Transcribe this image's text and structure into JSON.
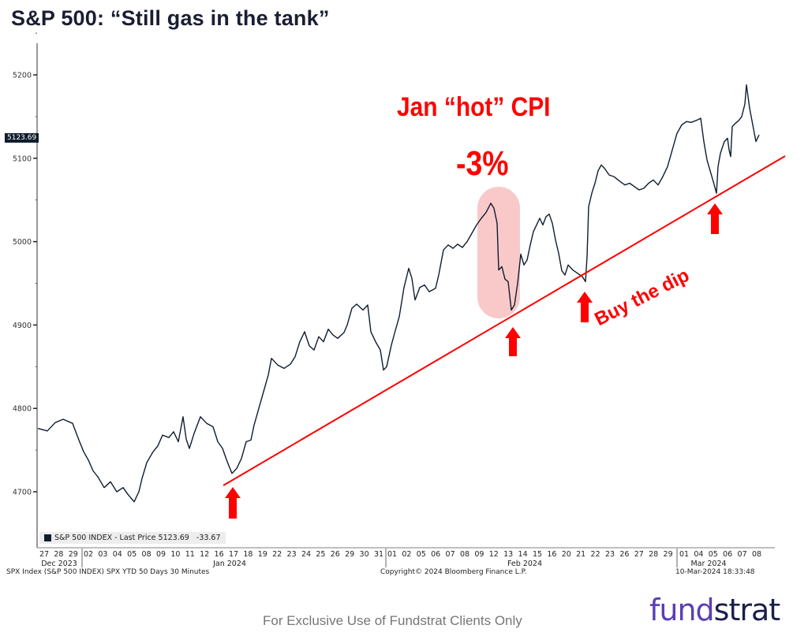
{
  "title": "S&P 500: “Still gas in the tank”",
  "chart_data": {
    "type": "line",
    "title": "S&P 500: “Still gas in the tank”",
    "series": [
      {
        "name": "S&P 500 INDEX - Last Price",
        "color": "#0f1d2e",
        "points": [
          [
            48,
            4776
          ],
          [
            60,
            4773
          ],
          [
            70,
            4783
          ],
          [
            80,
            4787
          ],
          [
            92,
            4782
          ],
          [
            100,
            4762
          ],
          [
            106,
            4748
          ],
          [
            112,
            4738
          ],
          [
            118,
            4725
          ],
          [
            124,
            4718
          ],
          [
            132,
            4705
          ],
          [
            140,
            4712
          ],
          [
            148,
            4700
          ],
          [
            156,
            4705
          ],
          [
            162,
            4697
          ],
          [
            170,
            4688
          ],
          [
            176,
            4700
          ],
          [
            180,
            4716
          ],
          [
            186,
            4735
          ],
          [
            194,
            4748
          ],
          [
            200,
            4755
          ],
          [
            206,
            4768
          ],
          [
            214,
            4765
          ],
          [
            220,
            4772
          ],
          [
            226,
            4760
          ],
          [
            232,
            4790
          ],
          [
            236,
            4763
          ],
          [
            240,
            4752
          ],
          [
            246,
            4770
          ],
          [
            254,
            4790
          ],
          [
            262,
            4782
          ],
          [
            270,
            4778
          ],
          [
            276,
            4760
          ],
          [
            282,
            4752
          ],
          [
            288,
            4736
          ],
          [
            294,
            4722
          ],
          [
            300,
            4728
          ],
          [
            306,
            4740
          ],
          [
            312,
            4760
          ],
          [
            318,
            4762
          ],
          [
            322,
            4780
          ],
          [
            328,
            4800
          ],
          [
            334,
            4820
          ],
          [
            340,
            4840
          ],
          [
            344,
            4860
          ],
          [
            352,
            4852
          ],
          [
            360,
            4848
          ],
          [
            368,
            4853
          ],
          [
            374,
            4862
          ],
          [
            380,
            4880
          ],
          [
            386,
            4892
          ],
          [
            392,
            4875
          ],
          [
            398,
            4870
          ],
          [
            404,
            4886
          ],
          [
            410,
            4880
          ],
          [
            416,
            4895
          ],
          [
            422,
            4888
          ],
          [
            428,
            4884
          ],
          [
            436,
            4891
          ],
          [
            440,
            4900
          ],
          [
            446,
            4920
          ],
          [
            452,
            4925
          ],
          [
            460,
            4918
          ],
          [
            466,
            4924
          ],
          [
            470,
            4892
          ],
          [
            476,
            4880
          ],
          [
            482,
            4870
          ],
          [
            486,
            4846
          ],
          [
            490,
            4850
          ],
          [
            496,
            4876
          ],
          [
            500,
            4890
          ],
          [
            506,
            4910
          ],
          [
            512,
            4945
          ],
          [
            518,
            4968
          ],
          [
            522,
            4956
          ],
          [
            526,
            4930
          ],
          [
            532,
            4945
          ],
          [
            538,
            4948
          ],
          [
            544,
            4940
          ],
          [
            552,
            4944
          ],
          [
            556,
            4960
          ],
          [
            562,
            4990
          ],
          [
            568,
            4996
          ],
          [
            574,
            4992
          ],
          [
            580,
            4997
          ],
          [
            586,
            4993
          ],
          [
            592,
            5000
          ],
          [
            598,
            5010
          ],
          [
            604,
            5020
          ],
          [
            610,
            5028
          ],
          [
            616,
            5035
          ],
          [
            622,
            5046
          ],
          [
            626,
            5040
          ],
          [
            630,
            5022
          ],
          [
            632,
            4966
          ],
          [
            636,
            4970
          ],
          [
            640,
            4955
          ],
          [
            644,
            4952
          ],
          [
            648,
            4918
          ],
          [
            652,
            4924
          ],
          [
            656,
            4950
          ],
          [
            660,
            4985
          ],
          [
            664,
            4972
          ],
          [
            668,
            4978
          ],
          [
            672,
            4996
          ],
          [
            676,
            5012
          ],
          [
            680,
            5020
          ],
          [
            684,
            5028
          ],
          [
            688,
            5020
          ],
          [
            692,
            5030
          ],
          [
            696,
            5033
          ],
          [
            700,
            5022
          ],
          [
            704,
            5002
          ],
          [
            708,
            4986
          ],
          [
            712,
            4965
          ],
          [
            716,
            4960
          ],
          [
            720,
            4972
          ],
          [
            726,
            4966
          ],
          [
            732,
            4962
          ],
          [
            738,
            4958
          ],
          [
            742,
            4952
          ],
          [
            744,
            4982
          ],
          [
            746,
            5042
          ],
          [
            750,
            5058
          ],
          [
            754,
            5070
          ],
          [
            758,
            5085
          ],
          [
            762,
            5092
          ],
          [
            766,
            5088
          ],
          [
            772,
            5080
          ],
          [
            778,
            5078
          ],
          [
            786,
            5072
          ],
          [
            792,
            5068
          ],
          [
            798,
            5070
          ],
          [
            804,
            5066
          ],
          [
            810,
            5062
          ],
          [
            816,
            5064
          ],
          [
            822,
            5070
          ],
          [
            828,
            5074
          ],
          [
            834,
            5068
          ],
          [
            840,
            5078
          ],
          [
            846,
            5090
          ],
          [
            852,
            5110
          ],
          [
            858,
            5130
          ],
          [
            864,
            5140
          ],
          [
            870,
            5144
          ],
          [
            876,
            5143
          ],
          [
            884,
            5146
          ],
          [
            888,
            5148
          ],
          [
            892,
            5120
          ],
          [
            896,
            5098
          ],
          [
            900,
            5085
          ],
          [
            904,
            5072
          ],
          [
            908,
            5058
          ],
          [
            910,
            5090
          ],
          [
            913,
            5106
          ],
          [
            918,
            5120
          ],
          [
            922,
            5124
          ],
          [
            924,
            5110
          ],
          [
            926,
            5102
          ],
          [
            928,
            5138
          ],
          [
            932,
            5142
          ],
          [
            936,
            5145
          ],
          [
            940,
            5150
          ],
          [
            944,
            5165
          ],
          [
            946,
            5188
          ],
          [
            950,
            5160
          ],
          [
            954,
            5140
          ],
          [
            958,
            5120
          ],
          [
            962,
            5128
          ]
        ],
        "last_price": 5123.69,
        "change": -33.67
      }
    ],
    "x_tick_labels": {
      "Dec 2023": [
        "27",
        "28",
        "29"
      ],
      "Jan 2024": [
        "02",
        "03",
        "04",
        "05",
        "08",
        "09",
        "10",
        "11",
        "12",
        "16",
        "17",
        "18",
        "19",
        "22",
        "23",
        "24",
        "25",
        "26",
        "29",
        "30",
        "31"
      ],
      "Feb 2024": [
        "01",
        "02",
        "05",
        "06",
        "07",
        "08",
        "09",
        "12",
        "13",
        "14",
        "15",
        "16",
        "20",
        "21",
        "22",
        "23",
        "26",
        "27",
        "28",
        "29"
      ],
      "Mar 2024": [
        "01",
        "04",
        "05",
        "06",
        "07",
        "08"
      ]
    },
    "y_ticks": [
      4700,
      4800,
      4900,
      5000,
      5100,
      5200
    ],
    "ylim": [
      4640,
      5240
    ],
    "xlabel": "",
    "ylabel": "",
    "grid": false,
    "legend_position": "bottom-left",
    "annotations": [
      {
        "text": "Jan “hot” CPI",
        "color": "#ff0000"
      },
      {
        "text": "-3%",
        "color": "#ff0000"
      },
      {
        "text": "Buy the dip",
        "color": "#ff0000"
      },
      {
        "type": "trendline",
        "from": [
          283,
          4710
        ],
        "to": [
          995,
          5100
        ],
        "color": "#ff0000"
      },
      {
        "type": "highlight",
        "label": "Feb 12-13 CPI drop",
        "color": "#f9c9c9"
      },
      {
        "type": "arrows",
        "count": 4,
        "at": [
          "Jan 17",
          "Feb 13",
          "Feb 21",
          "Mar 05"
        ],
        "color": "#ff0000"
      }
    ]
  },
  "axis": {
    "y_labels": [
      "5200",
      "5100",
      "5000",
      "4900",
      "4800",
      "4700"
    ],
    "last_badge": "5123.69",
    "x_days": {
      "dec": [
        "27",
        "28",
        "29"
      ],
      "jan": [
        "02",
        "03",
        "04",
        "05",
        "08",
        "09",
        "10",
        "11",
        "12",
        "16",
        "17",
        "18",
        "19",
        "22",
        "23",
        "24",
        "25",
        "26",
        "29",
        "30",
        "31"
      ],
      "feb": [
        "01",
        "02",
        "05",
        "06",
        "07",
        "08",
        "09",
        "12",
        "13",
        "14",
        "15",
        "16",
        "20",
        "21",
        "22",
        "23",
        "26",
        "27",
        "28",
        "29"
      ],
      "mar": [
        "01",
        "04",
        "05",
        "06",
        "07",
        "08"
      ]
    },
    "x_months": [
      "Dec 2023",
      "Jan 2024",
      "Feb 2024",
      "Mar 2024"
    ]
  },
  "legend": {
    "label": "S&P 500 INDEX - Last Price 5123.69   -33.67"
  },
  "annotations": {
    "cpi_label": "Jan “hot” CPI",
    "cpi_pct": "-3%",
    "buy_dip": "Buy the dip"
  },
  "footer": {
    "source": "SPX Index (S&P 500 INDEX) SPX YTD 50 Days 30 Minutes",
    "copyright": "Copyright© 2024 Bloomberg Finance L.P.",
    "timestamp": "10-Mar-2024 18:33:48",
    "disclaimer": "For Exclusive Use of Fundstrat Clients Only",
    "logo_part1": "fund",
    "logo_part2": "strat"
  },
  "colors": {
    "price_line": "#0f1d2e",
    "annotation_red": "#ff0000",
    "highlight_pink": "#f9c9c9",
    "logo_purple": "#5b3fb5",
    "logo_navy": "#1b1f4a",
    "title": "#1a1e33"
  }
}
